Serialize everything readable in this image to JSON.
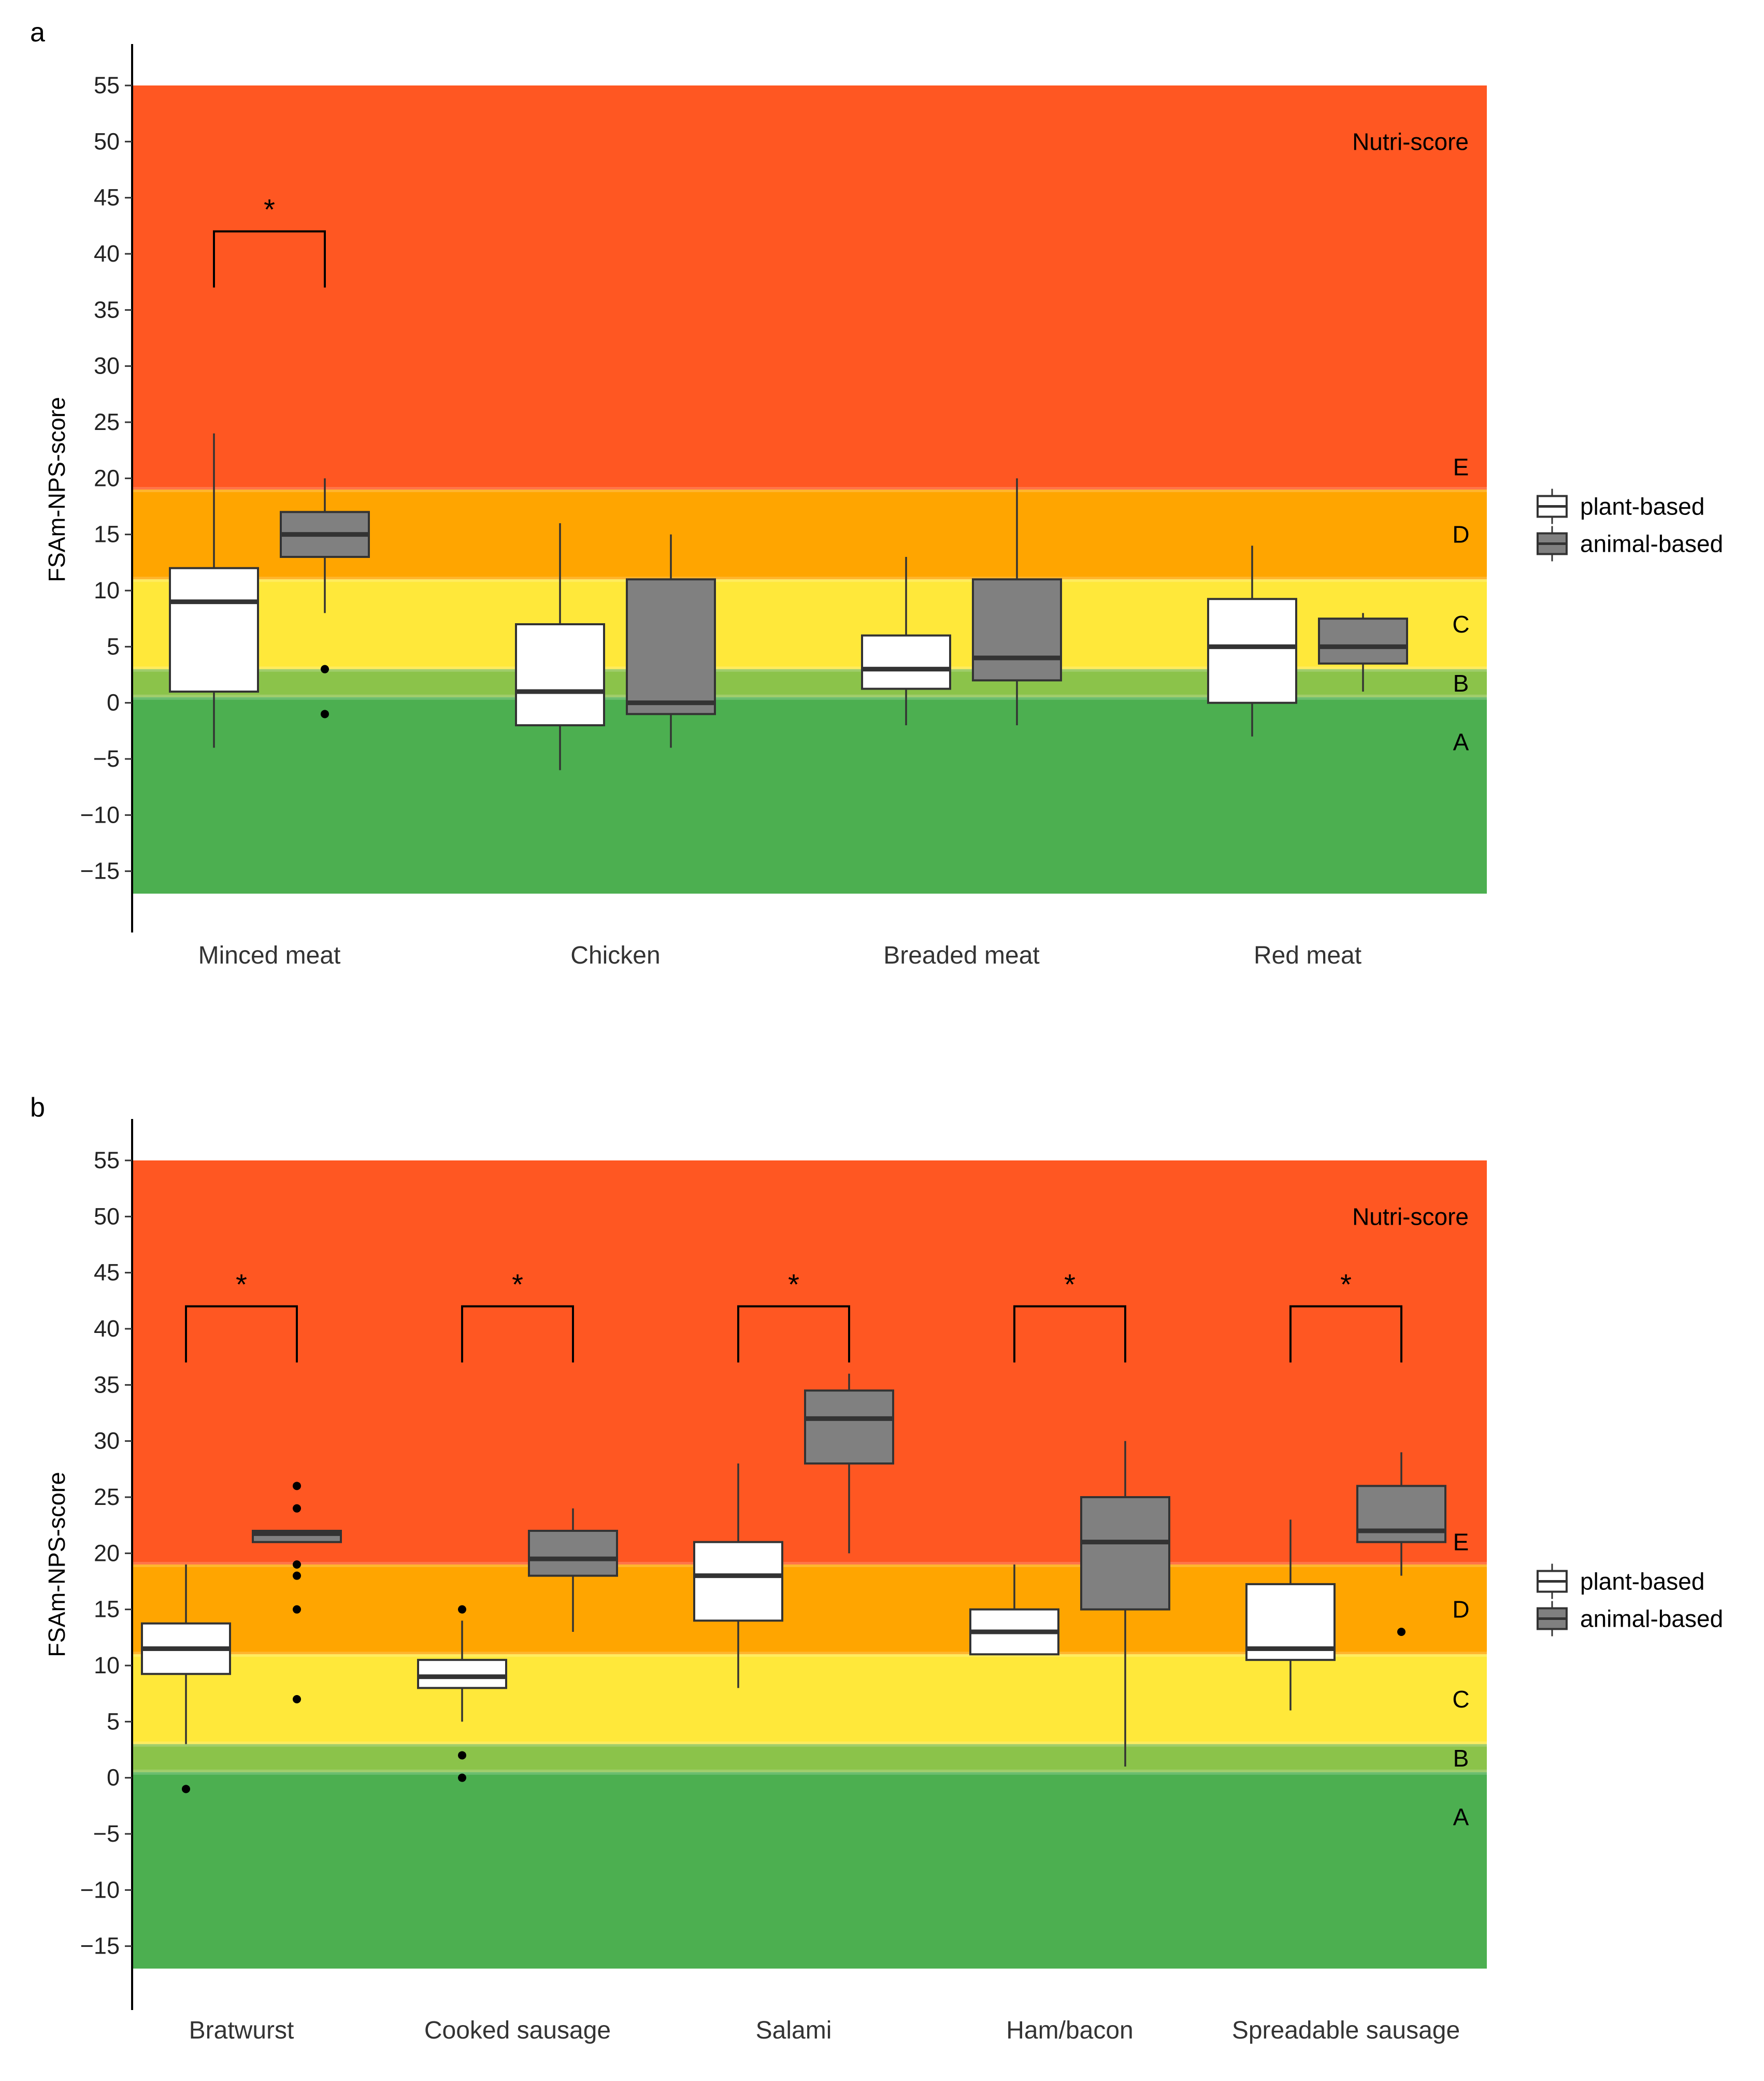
{
  "chart_data": [
    {
      "type": "box",
      "panel": "a",
      "ylabel": "FSAm-NPS-score",
      "xlabel": "",
      "ylim": [
        -17,
        55
      ],
      "yticks": [
        55,
        50,
        45,
        40,
        35,
        30,
        25,
        20,
        15,
        10,
        5,
        0,
        -5,
        -10,
        -15
      ],
      "background_bands": {
        "title": "Nutri-score",
        "grades": [
          {
            "label": "E",
            "from": 19,
            "to": 55,
            "color": "#FF5722"
          },
          {
            "label": "D",
            "from": 11,
            "to": 19,
            "color": "#FFA500"
          },
          {
            "label": "C",
            "from": 3,
            "to": 11,
            "color": "#FFE83A"
          },
          {
            "label": "B",
            "from": 0.5,
            "to": 3,
            "color": "#8BC34A"
          },
          {
            "label": "A",
            "from": -17,
            "to": 0.5,
            "color": "#4CAF50"
          }
        ]
      },
      "legend": {
        "placement": "right",
        "items": [
          {
            "label": "plant-based",
            "color": "#ffffff"
          },
          {
            "label": "animal-based",
            "color": "#808080"
          }
        ]
      },
      "categories": [
        "Minced meat",
        "Chicken",
        "Breaded meat",
        "Red meat"
      ],
      "series": [
        {
          "name": "plant-based",
          "color": "#ffffff",
          "boxes": [
            {
              "lower_whisker": -4,
              "q1": 1,
              "median": 9,
              "q3": 12,
              "upper_whisker": 24,
              "outliers": []
            },
            {
              "lower_whisker": -6,
              "q1": -2,
              "median": 1,
              "q3": 7,
              "upper_whisker": 16,
              "outliers": []
            },
            {
              "lower_whisker": -2,
              "q1": 1.25,
              "median": 3,
              "q3": 6,
              "upper_whisker": 13,
              "outliers": []
            },
            {
              "lower_whisker": -3,
              "q1": 0,
              "median": 5,
              "q3": 9.25,
              "upper_whisker": 14,
              "outliers": []
            }
          ]
        },
        {
          "name": "animal-based",
          "color": "#808080",
          "boxes": [
            {
              "lower_whisker": 8,
              "q1": 13,
              "median": 15,
              "q3": 17,
              "upper_whisker": 20,
              "outliers": [
                3,
                -1
              ]
            },
            {
              "lower_whisker": -4,
              "q1": -1,
              "median": 0,
              "q3": 11,
              "upper_whisker": 15,
              "outliers": []
            },
            {
              "lower_whisker": -2,
              "q1": 2,
              "median": 4,
              "q3": 11,
              "upper_whisker": 20,
              "outliers": []
            },
            {
              "lower_whisker": 1,
              "q1": 3.5,
              "median": 5,
              "q3": 7.5,
              "upper_whisker": 8,
              "outliers": []
            }
          ]
        }
      ],
      "significance": [
        {
          "category_index": 0,
          "label": "*",
          "bracket_top": 42,
          "bracket_bottom": 37
        }
      ]
    },
    {
      "type": "box",
      "panel": "b",
      "ylabel": "FSAm-NPS-score",
      "xlabel": "",
      "ylim": [
        -17,
        55
      ],
      "yticks": [
        55,
        50,
        45,
        40,
        35,
        30,
        25,
        20,
        15,
        10,
        5,
        0,
        -5,
        -10,
        -15
      ],
      "background_bands": {
        "title": "Nutri-score",
        "grades": [
          {
            "label": "E",
            "from": 19,
            "to": 55,
            "color": "#FF5722"
          },
          {
            "label": "D",
            "from": 11,
            "to": 19,
            "color": "#FFA500"
          },
          {
            "label": "C",
            "from": 3,
            "to": 11,
            "color": "#FFE83A"
          },
          {
            "label": "B",
            "from": 0.5,
            "to": 3,
            "color": "#8BC34A"
          },
          {
            "label": "A",
            "from": -17,
            "to": 0.5,
            "color": "#4CAF50"
          }
        ]
      },
      "legend": {
        "placement": "right",
        "items": [
          {
            "label": "plant-based",
            "color": "#ffffff"
          },
          {
            "label": "animal-based",
            "color": "#808080"
          }
        ]
      },
      "categories": [
        "Bratwurst",
        "Cooked sausage",
        "Salami",
        "Ham/bacon",
        "Spreadable sausage"
      ],
      "series": [
        {
          "name": "plant-based",
          "color": "#ffffff",
          "boxes": [
            {
              "lower_whisker": 3,
              "q1": 9.25,
              "median": 11.5,
              "q3": 13.75,
              "upper_whisker": 19,
              "outliers": [
                -1
              ]
            },
            {
              "lower_whisker": 5,
              "q1": 8,
              "median": 9,
              "q3": 10.5,
              "upper_whisker": 14,
              "outliers": [
                15,
                2,
                0
              ]
            },
            {
              "lower_whisker": 8,
              "q1": 14,
              "median": 18,
              "q3": 21,
              "upper_whisker": 28,
              "outliers": []
            },
            {
              "lower_whisker": 11,
              "q1": 11,
              "median": 13,
              "q3": 15,
              "upper_whisker": 19,
              "outliers": []
            },
            {
              "lower_whisker": 6,
              "q1": 10.5,
              "median": 11.5,
              "q3": 17.25,
              "upper_whisker": 23,
              "outliers": []
            }
          ]
        },
        {
          "name": "animal-based",
          "color": "#808080",
          "boxes": [
            {
              "lower_whisker": 21,
              "q1": 21,
              "median": 21.75,
              "q3": 22,
              "upper_whisker": 22,
              "outliers": [
                26,
                24,
                19,
                18,
                15,
                7
              ]
            },
            {
              "lower_whisker": 13,
              "q1": 18,
              "median": 19.5,
              "q3": 22,
              "upper_whisker": 24,
              "outliers": []
            },
            {
              "lower_whisker": 20,
              "q1": 28,
              "median": 32,
              "q3": 34.5,
              "upper_whisker": 36,
              "outliers": []
            },
            {
              "lower_whisker": 1,
              "q1": 15,
              "median": 21,
              "q3": 25,
              "upper_whisker": 30,
              "outliers": []
            },
            {
              "lower_whisker": 18,
              "q1": 21,
              "median": 22,
              "q3": 26,
              "upper_whisker": 29,
              "outliers": [
                13
              ]
            }
          ]
        }
      ],
      "significance": [
        {
          "category_index": 0,
          "label": "*",
          "bracket_top": 42,
          "bracket_bottom": 37
        },
        {
          "category_index": 1,
          "label": "*",
          "bracket_top": 42,
          "bracket_bottom": 37
        },
        {
          "category_index": 2,
          "label": "*",
          "bracket_top": 42,
          "bracket_bottom": 37
        },
        {
          "category_index": 3,
          "label": "*",
          "bracket_top": 42,
          "bracket_bottom": 37
        },
        {
          "category_index": 4,
          "label": "*",
          "bracket_top": 42,
          "bracket_bottom": 37
        }
      ]
    }
  ]
}
